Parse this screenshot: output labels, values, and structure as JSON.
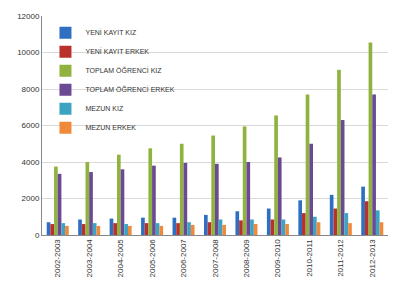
{
  "chart_data": {
    "type": "bar",
    "categories": [
      "2002-2003",
      "2003-2004",
      "2004-2005",
      "2005-2006",
      "2006-2007",
      "2007-2008",
      "2008-2009",
      "2009-2010",
      "2010-2011",
      "2011-2012",
      "2012-2013"
    ],
    "series": [
      {
        "name": "YENİ KAYIT KIZ",
        "color": "#2E6FC1",
        "values": [
          700,
          850,
          900,
          950,
          950,
          1100,
          1300,
          1450,
          1900,
          2200,
          2650
        ]
      },
      {
        "name": "YENİ KAYIT ERKEK",
        "color": "#B8312C",
        "values": [
          600,
          600,
          650,
          650,
          650,
          700,
          800,
          850,
          1200,
          1450,
          1850
        ]
      },
      {
        "name": "TOPLAM ÖĞRENCİ KIZ",
        "color": "#8FB33E",
        "values": [
          3750,
          4000,
          4400,
          4750,
          5000,
          5450,
          5950,
          6550,
          7700,
          9050,
          10550
        ]
      },
      {
        "name": "TOPLAM ÖĞRENCİ ERKEK",
        "color": "#6A4A92",
        "values": [
          3350,
          3450,
          3600,
          3800,
          3950,
          3900,
          4000,
          4250,
          5000,
          6300,
          7700
        ]
      },
      {
        "name": "MEZUN KIZ",
        "color": "#3CA3C2",
        "values": [
          650,
          650,
          600,
          650,
          700,
          850,
          850,
          850,
          1000,
          1200,
          1350
        ]
      },
      {
        "name": "MEZUN ERKEK",
        "color": "#F08A3A",
        "values": [
          500,
          500,
          500,
          500,
          550,
          550,
          600,
          600,
          700,
          650,
          700
        ]
      }
    ],
    "ylim": [
      0,
      12000
    ],
    "yticks": [
      0,
      2000,
      4000,
      6000,
      8000,
      10000,
      12000
    ],
    "grid": true,
    "legend": "top-left"
  }
}
